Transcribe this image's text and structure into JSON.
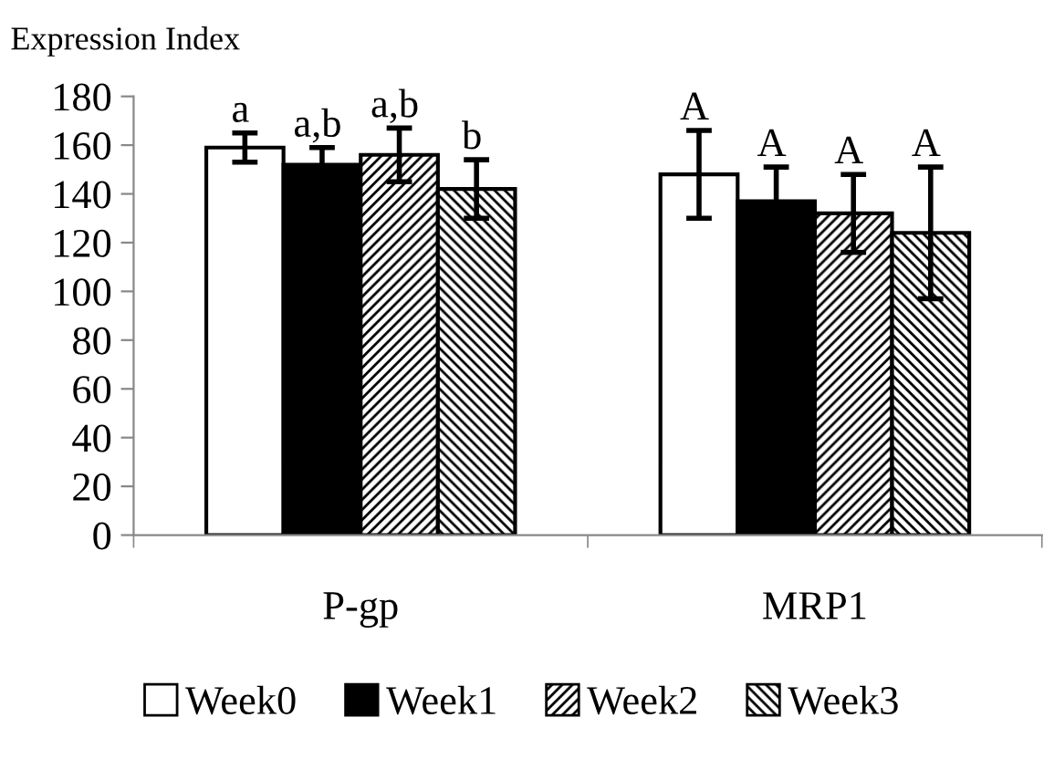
{
  "chart_data": {
    "type": "bar",
    "ylabel": "Expression Index",
    "categories": [
      "P-gp",
      "MRP1"
    ],
    "series": [
      {
        "name": "Week0",
        "color": "#ffffff",
        "values": [
          159,
          148
        ],
        "errors": [
          6,
          18
        ],
        "value_labels": [
          "a",
          "A"
        ]
      },
      {
        "name": "Week1",
        "color": "#000000",
        "values": [
          152,
          137
        ],
        "errors": [
          7,
          14
        ],
        "value_labels": [
          "a,b",
          "A"
        ]
      },
      {
        "name": "Week2",
        "color": "#000000",
        "values": [
          156,
          132
        ],
        "errors": [
          11,
          16
        ],
        "value_labels": [
          "a,b",
          "A"
        ]
      },
      {
        "name": "Week3",
        "color": "#000000",
        "values": [
          142,
          124
        ],
        "errors": [
          12,
          27
        ],
        "value_labels": [
          "b",
          "A"
        ]
      }
    ],
    "ylim": [
      0,
      180
    ],
    "yticks": [
      0,
      20,
      40,
      60,
      80,
      100,
      120,
      140,
      160,
      180
    ],
    "grid": false,
    "legend": "bottom"
  }
}
